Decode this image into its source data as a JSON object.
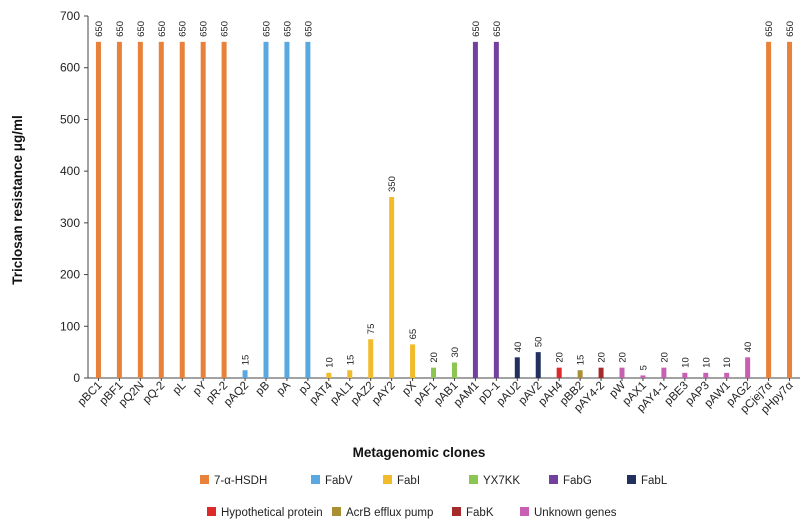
{
  "chart_data": {
    "type": "bar",
    "title": "",
    "xlabel": "Metagenomic clones",
    "ylabel": "Triclosan resistance μg/ml",
    "ylim": [
      0,
      700
    ],
    "yticks": [
      0,
      100,
      200,
      300,
      400,
      500,
      600,
      700
    ],
    "grid": false,
    "legend_position": "bottom",
    "colors": {
      "7-α-HSDH": "#e8813a",
      "FabV": "#5aa8e0",
      "FabI": "#f2bb2c",
      "YX7KK": "#8cc652",
      "FabG": "#7340a0",
      "FabL": "#23305e",
      "Hypothetical protein": "#dc2a2a",
      "AcrB efflux pump": "#a89033",
      "FabK": "#a52a2a",
      "Unknown genes": "#c760b2"
    },
    "legend": [
      [
        "7-α-HSDH",
        "FabV",
        "FabI",
        "YX7KK",
        "FabG",
        "FabL"
      ],
      [
        "Hypothetical protein",
        "AcrB efflux pump",
        "FabK",
        "Unknown genes"
      ]
    ],
    "categories": [
      "pBC1",
      "pBF1",
      "pQ2N",
      "pQ-2",
      "pL",
      "pY",
      "pR-2",
      "pAQ2",
      "pB",
      "pA",
      "pJ",
      "pAT4",
      "pAL1",
      "pAZ2",
      "pAY2",
      "pX",
      "pAF1",
      "pAB1",
      "pAM1",
      "pD-1",
      "pAU2",
      "pAV2",
      "pAH4",
      "pBB2",
      "pAY4-2",
      "pW",
      "pAX1",
      "pAY4-1",
      "pBE3",
      "pAP3",
      "pAW1",
      "pAG2",
      "pCjej7α",
      "pHpy7α"
    ],
    "values": [
      650,
      650,
      650,
      650,
      650,
      650,
      650,
      15,
      650,
      650,
      650,
      10,
      15,
      75,
      350,
      65,
      20,
      30,
      650,
      650,
      40,
      50,
      20,
      15,
      20,
      20,
      5,
      20,
      10,
      10,
      10,
      40,
      650,
      650
    ],
    "groups": [
      "7-α-HSDH",
      "7-α-HSDH",
      "7-α-HSDH",
      "7-α-HSDH",
      "7-α-HSDH",
      "7-α-HSDH",
      "7-α-HSDH",
      "FabV",
      "FabV",
      "FabV",
      "FabV",
      "FabI",
      "FabI",
      "FabI",
      "FabI",
      "FabI",
      "YX7KK",
      "YX7KK",
      "FabG",
      "FabG",
      "FabL",
      "FabL",
      "Hypothetical protein",
      "AcrB efflux pump",
      "FabK",
      "Unknown genes",
      "Unknown genes",
      "Unknown genes",
      "Unknown genes",
      "Unknown genes",
      "Unknown genes",
      "Unknown genes",
      "7-α-HSDH",
      "7-α-HSDH"
    ]
  }
}
